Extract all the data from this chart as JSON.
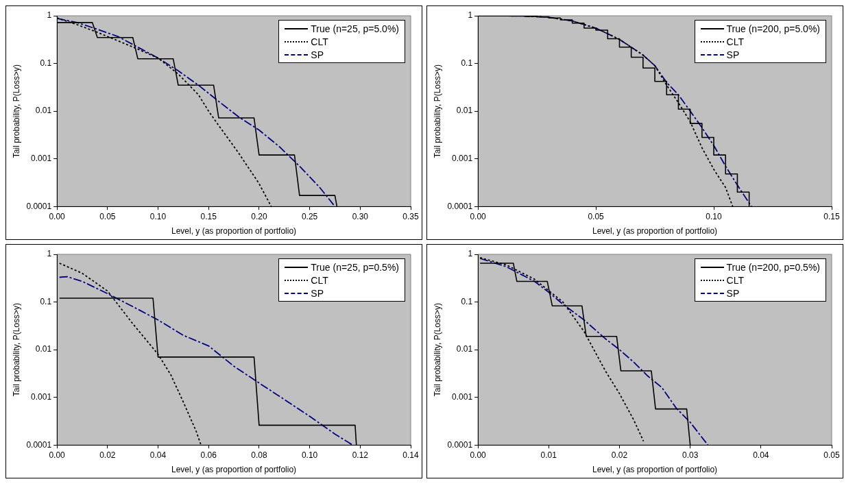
{
  "chart_data": [
    {
      "type": "line",
      "xlabel": "Level, y (as proportion of portfolio)",
      "ylabel": "Tail probability, P(Loss>y)",
      "xlim": [
        0,
        0.35
      ],
      "xticks": [
        {
          "value": 0,
          "label": "0.00"
        },
        {
          "value": 0.05,
          "label": "0.05"
        },
        {
          "value": 0.1,
          "label": "0.10"
        },
        {
          "value": 0.15,
          "label": "0.15"
        },
        {
          "value": 0.2,
          "label": "0.20"
        },
        {
          "value": 0.25,
          "label": "0.25"
        },
        {
          "value": 0.3,
          "label": "0.30"
        },
        {
          "value": 0.35,
          "label": "0.35"
        }
      ],
      "ylim": [
        0.0001,
        1
      ],
      "yticks": [
        1,
        0.1,
        0.01,
        0.001,
        0.0001
      ],
      "log": "y",
      "legend": "top right",
      "marker": "none",
      "series": [
        {
          "name": "True (n=25, p=5.0%)",
          "color": "#000000",
          "line_style": "solid",
          "x": [
            0,
            0.035,
            0.04,
            0.075,
            0.08,
            0.115,
            0.12,
            0.155,
            0.16,
            0.195,
            0.2,
            0.235,
            0.24,
            0.275,
            0.277
          ],
          "values": [
            0.72,
            0.72,
            0.35,
            0.35,
            0.125,
            0.125,
            0.035,
            0.035,
            0.0072,
            0.0072,
            0.0012,
            0.0012,
            0.00017,
            0.00017,
            0.0001
          ]
        },
        {
          "name": "CLT",
          "color": "#000000",
          "line_style": "dotted",
          "x": [
            0,
            0.02,
            0.04,
            0.06,
            0.08,
            0.1,
            0.12,
            0.14,
            0.15,
            0.16,
            0.18,
            0.2,
            0.212
          ],
          "values": [
            0.9,
            0.65,
            0.45,
            0.3,
            0.2,
            0.13,
            0.06,
            0.022,
            0.01,
            0.005,
            0.0013,
            0.0003,
            0.0001
          ]
        },
        {
          "name": "SP",
          "color": "#000080",
          "line_style": "dashed",
          "x": [
            0,
            0.02,
            0.04,
            0.06,
            0.08,
            0.1,
            0.12,
            0.14,
            0.16,
            0.18,
            0.2,
            0.22,
            0.24,
            0.26,
            0.275
          ],
          "values": [
            0.88,
            0.72,
            0.52,
            0.37,
            0.22,
            0.13,
            0.07,
            0.035,
            0.016,
            0.0075,
            0.004,
            0.0018,
            0.0007,
            0.00025,
            0.0001
          ]
        }
      ]
    },
    {
      "type": "line",
      "xlabel": "Level, y (as proportion of portfolio)",
      "ylabel": "Tail probability, P(Loss>y)",
      "xlim": [
        0,
        0.15
      ],
      "xticks": [
        {
          "value": 0,
          "label": "0.00"
        },
        {
          "value": 0.05,
          "label": "0.05"
        },
        {
          "value": 0.1,
          "label": "0.10"
        },
        {
          "value": 0.15,
          "label": "0.15"
        }
      ],
      "ylim": [
        0.0001,
        1
      ],
      "yticks": [
        1,
        0.1,
        0.01,
        0.001,
        0.0001
      ],
      "log": "y",
      "legend": "top right",
      "marker": "none",
      "series": [
        {
          "name": "True (n=200, p=5.0%)",
          "color": "#000000",
          "line_style": "solid",
          "x": [
            0,
            0.02,
            0.02,
            0.025,
            0.025,
            0.03,
            0.03,
            0.035,
            0.035,
            0.04,
            0.04,
            0.045,
            0.045,
            0.05,
            0.05,
            0.055,
            0.055,
            0.06,
            0.06,
            0.065,
            0.065,
            0.07,
            0.07,
            0.075,
            0.075,
            0.08,
            0.08,
            0.085,
            0.085,
            0.09,
            0.09,
            0.095,
            0.095,
            0.1,
            0.1,
            0.105,
            0.105,
            0.11,
            0.11,
            0.115,
            0.115
          ],
          "values": [
            0.99,
            0.99,
            0.97,
            0.97,
            0.95,
            0.95,
            0.9,
            0.9,
            0.82,
            0.82,
            0.7,
            0.7,
            0.55,
            0.55,
            0.5,
            0.5,
            0.33,
            0.33,
            0.22,
            0.22,
            0.135,
            0.135,
            0.08,
            0.08,
            0.042,
            0.042,
            0.022,
            0.022,
            0.011,
            0.011,
            0.0055,
            0.0055,
            0.0028,
            0.0028,
            0.0012,
            0.0012,
            0.00048,
            0.00048,
            0.0002,
            0.0002,
            0.0001
          ]
        },
        {
          "name": "CLT",
          "color": "#000000",
          "line_style": "dotted",
          "x": [
            0,
            0.02,
            0.03,
            0.04,
            0.05,
            0.06,
            0.07,
            0.075,
            0.08,
            0.085,
            0.09,
            0.095,
            0.1,
            0.105,
            0.108
          ],
          "values": [
            1,
            0.99,
            0.93,
            0.78,
            0.55,
            0.32,
            0.15,
            0.09,
            0.035,
            0.015,
            0.006,
            0.0017,
            0.0006,
            0.00025,
            0.0001
          ]
        },
        {
          "name": "SP",
          "color": "#000080",
          "line_style": "dashed",
          "x": [
            0,
            0.02,
            0.03,
            0.04,
            0.05,
            0.06,
            0.07,
            0.075,
            0.08,
            0.085,
            0.09,
            0.095,
            0.1,
            0.105,
            0.11,
            0.116
          ],
          "values": [
            1,
            0.99,
            0.93,
            0.78,
            0.55,
            0.32,
            0.15,
            0.09,
            0.04,
            0.022,
            0.01,
            0.0045,
            0.0019,
            0.0007,
            0.00028,
            0.0001
          ]
        }
      ]
    },
    {
      "type": "line",
      "xlabel": "Level, y (as proportion of portfolio)",
      "ylabel": "Tail probability, P(Loss>y)",
      "xlim": [
        0,
        0.14
      ],
      "xticks": [
        {
          "value": 0,
          "label": "0.00"
        },
        {
          "value": 0.02,
          "label": "0.02"
        },
        {
          "value": 0.04,
          "label": "0.04"
        },
        {
          "value": 0.06,
          "label": "0.06"
        },
        {
          "value": 0.08,
          "label": "0.08"
        },
        {
          "value": 0.1,
          "label": "0.10"
        },
        {
          "value": 0.12,
          "label": "0.12"
        },
        {
          "value": 0.14,
          "label": "0.14"
        }
      ],
      "ylim": [
        0.0001,
        1
      ],
      "yticks": [
        1,
        0.1,
        0.01,
        0.001,
        0.0001
      ],
      "log": "y",
      "legend": "top right",
      "marker": "none",
      "series": [
        {
          "name": "True (n=25, p=0.5%)",
          "color": "#000000",
          "line_style": "solid",
          "x": [
            0.001,
            0.038,
            0.04,
            0.078,
            0.08,
            0.118,
            0.1185
          ],
          "values": [
            0.12,
            0.12,
            0.007,
            0.007,
            0.00026,
            0.00026,
            0.0001
          ]
        },
        {
          "name": "CLT",
          "color": "#000000",
          "line_style": "dotted",
          "x": [
            0.001,
            0.01,
            0.02,
            0.03,
            0.04,
            0.045,
            0.05,
            0.055,
            0.057
          ],
          "values": [
            0.65,
            0.4,
            0.17,
            0.035,
            0.008,
            0.003,
            0.0008,
            0.0002,
            0.0001
          ]
        },
        {
          "name": "SP",
          "color": "#000080",
          "line_style": "dashed",
          "x": [
            0.001,
            0.004,
            0.01,
            0.02,
            0.03,
            0.04,
            0.05,
            0.06,
            0.07,
            0.08,
            0.09,
            0.1,
            0.11,
            0.117
          ],
          "values": [
            0.33,
            0.34,
            0.27,
            0.15,
            0.08,
            0.042,
            0.02,
            0.012,
            0.0045,
            0.002,
            0.0009,
            0.0004,
            0.00017,
            0.0001
          ]
        }
      ]
    },
    {
      "type": "line",
      "xlabel": "Level, y (as proportion of portfolio)",
      "ylabel": "Tail probability, P(Loss>y)",
      "xlim": [
        0,
        0.05
      ],
      "xticks": [
        {
          "value": 0,
          "label": "0.00"
        },
        {
          "value": 0.01,
          "label": "0.01"
        },
        {
          "value": 0.02,
          "label": "0.02"
        },
        {
          "value": 0.03,
          "label": "0.03"
        },
        {
          "value": 0.04,
          "label": "0.04"
        },
        {
          "value": 0.05,
          "label": "0.05"
        }
      ],
      "ylim": [
        0.0001,
        1
      ],
      "yticks": [
        1,
        0.1,
        0.01,
        0.001,
        0.0001
      ],
      "log": "y",
      "legend": "top right",
      "marker": "none",
      "series": [
        {
          "name": "True (n=200, p=0.5%)",
          "color": "#000000",
          "line_style": "solid",
          "x": [
            0.0003,
            0.005,
            0.0055,
            0.0098,
            0.0105,
            0.0147,
            0.0153,
            0.0196,
            0.0202,
            0.0245,
            0.0251,
            0.0295,
            0.03
          ],
          "values": [
            0.65,
            0.65,
            0.27,
            0.27,
            0.083,
            0.083,
            0.019,
            0.019,
            0.0036,
            0.0036,
            0.00057,
            0.00057,
            0.0001
          ]
        },
        {
          "name": "CLT",
          "color": "#000000",
          "line_style": "dotted",
          "x": [
            0.0003,
            0.004,
            0.008,
            0.012,
            0.015,
            0.018,
            0.02,
            0.022,
            0.0234
          ],
          "values": [
            0.85,
            0.6,
            0.3,
            0.1,
            0.024,
            0.0036,
            0.0012,
            0.00034,
            0.00012
          ]
        },
        {
          "name": "SP",
          "color": "#000080",
          "line_style": "dashed",
          "x": [
            0.0003,
            0.004,
            0.008,
            0.01,
            0.012,
            0.015,
            0.018,
            0.02,
            0.022,
            0.024,
            0.026,
            0.028,
            0.03,
            0.0325
          ],
          "values": [
            0.82,
            0.55,
            0.27,
            0.16,
            0.09,
            0.042,
            0.017,
            0.01,
            0.0055,
            0.0028,
            0.0016,
            0.0006,
            0.0003,
            0.0001
          ]
        }
      ]
    }
  ]
}
